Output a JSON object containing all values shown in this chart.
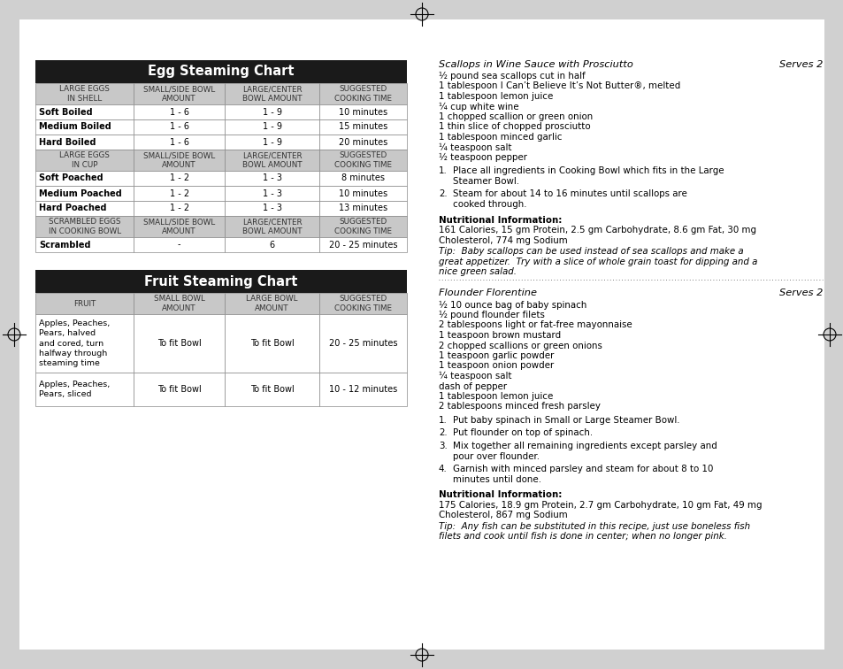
{
  "page_bg": "#d0d0d0",
  "content_bg": "#ffffff",
  "egg_chart_title": "Egg Steaming Chart",
  "egg_header_bg": "#1a1a1a",
  "egg_header_text": "#ffffff",
  "egg_subheader_bg": "#c8c8c8",
  "egg_subheader_text": "#333333",
  "egg_border": "#888888",
  "egg_headers_row1": [
    "LARGE EGGS\nIN SHELL",
    "SMALL/SIDE BOWL\nAMOUNT",
    "LARGE/CENTER\nBOWL AMOUNT",
    "SUGGESTED\nCOOKING TIME"
  ],
  "egg_data_shell": [
    [
      "Soft Boiled",
      "1 - 6",
      "1 - 9",
      "10 minutes"
    ],
    [
      "Medium Boiled",
      "1 - 6",
      "1 - 9",
      "15 minutes"
    ],
    [
      "Hard Boiled",
      "1 - 6",
      "1 - 9",
      "20 minutes"
    ]
  ],
  "egg_headers_row2": [
    "LARGE EGGS\nIN CUP",
    "SMALL/SIDE BOWL\nAMOUNT",
    "LARGE/CENTER\nBOWL AMOUNT",
    "SUGGESTED\nCOOKING TIME"
  ],
  "egg_data_cup": [
    [
      "Soft Poached",
      "1 - 2",
      "1 - 3",
      "8 minutes"
    ],
    [
      "Medium Poached",
      "1 - 2",
      "1 - 3",
      "10 minutes"
    ],
    [
      "Hard Poached",
      "1 - 2",
      "1 - 3",
      "13 minutes"
    ]
  ],
  "egg_headers_row3": [
    "SCRAMBLED EGGS\nIN COOKING BOWL",
    "SMALL/SIDE BOWL\nAMOUNT",
    "LARGE/CENTER\nBOWL AMOUNT",
    "SUGGESTED\nCOOKING TIME"
  ],
  "egg_data_scrambled": [
    [
      "Scrambled",
      "-",
      "6",
      "20 - 25 minutes"
    ]
  ],
  "fruit_chart_title": "Fruit Steaming Chart",
  "fruit_headers": [
    "FRUIT",
    "SMALL BOWL\nAMOUNT",
    "LARGE BOWL\nAMOUNT",
    "SUGGESTED\nCOOKING TIME"
  ],
  "fruit_data": [
    [
      "Apples, Peaches,\nPears, halved\nand cored, turn\nhalfway through\nsteaming time",
      "To fit Bowl",
      "To fit Bowl",
      "20 - 25 minutes"
    ],
    [
      "Apples, Peaches,\nPears, sliced",
      "To fit Bowl",
      "To fit Bowl",
      "10 - 12 minutes"
    ]
  ],
  "recipe1_title": "Scallops in Wine Sauce with Prosciutto",
  "recipe1_serves": "Serves 2",
  "recipe1_ingredients": [
    "½ pound sea scallops cut in half",
    "1 tablespoon I Can’t Believe It’s Not Butter®, melted",
    "1 tablespoon lemon juice",
    "¼ cup white wine",
    "1 chopped scallion or green onion",
    "1 thin slice of chopped prosciutto",
    "1 tablespoon minced garlic",
    "¼ teaspoon salt",
    "½ teaspoon pepper"
  ],
  "recipe1_steps": [
    [
      "1.",
      "Place all ingredients in Cooking Bowl which fits in the Large\nSteamer Bowl."
    ],
    [
      "2.",
      "Steam for about 14 to 16 minutes until scallops are\ncooked through."
    ]
  ],
  "recipe1_nutrition_label": "Nutritional Information:",
  "recipe1_nutrition": "161 Calories, 15 gm Protein, 2.5 gm Carbohydrate, 8.6 gm Fat, 30 mg\nCholesterol, 774 mg Sodium",
  "recipe1_tip": "Tip:  Baby scallops can be used instead of sea scallops and make a\ngreat appetizer.  Try with a slice of whole grain toast for dipping and a\nnice green salad.",
  "recipe2_title": "Flounder Florentine",
  "recipe2_serves": "Serves 2",
  "recipe2_ingredients": [
    "½ 10 ounce bag of baby spinach",
    "½ pound flounder filets",
    "2 tablespoons light or fat-free mayonnaise",
    "1 teaspoon brown mustard",
    "2 chopped scallions or green onions",
    "1 teaspoon garlic powder",
    "1 teaspoon onion powder",
    "¼ teaspoon salt",
    "dash of pepper",
    "1 tablespoon lemon juice",
    "2 tablespoons minced fresh parsley"
  ],
  "recipe2_steps": [
    [
      "1.",
      "Put baby spinach in Small or Large Steamer Bowl."
    ],
    [
      "2.",
      "Put flounder on top of spinach."
    ],
    [
      "3.",
      "Mix together all remaining ingredients except parsley and\npour over flounder."
    ],
    [
      "4.",
      "Garnish with minced parsley and steam for about 8 to 10\nminutes until done."
    ]
  ],
  "recipe2_nutrition_label": "Nutritional Information:",
  "recipe2_nutrition": "175 Calories, 18.9 gm Protein, 2.7 gm Carbohydrate, 10 gm Fat, 49 mg\nCholesterol, 867 mg Sodium",
  "recipe2_tip": "Tip:  Any fish can be substituted in this recipe, just use boneless fish\nfilets and cook until fish is done in center; when no longer pink."
}
